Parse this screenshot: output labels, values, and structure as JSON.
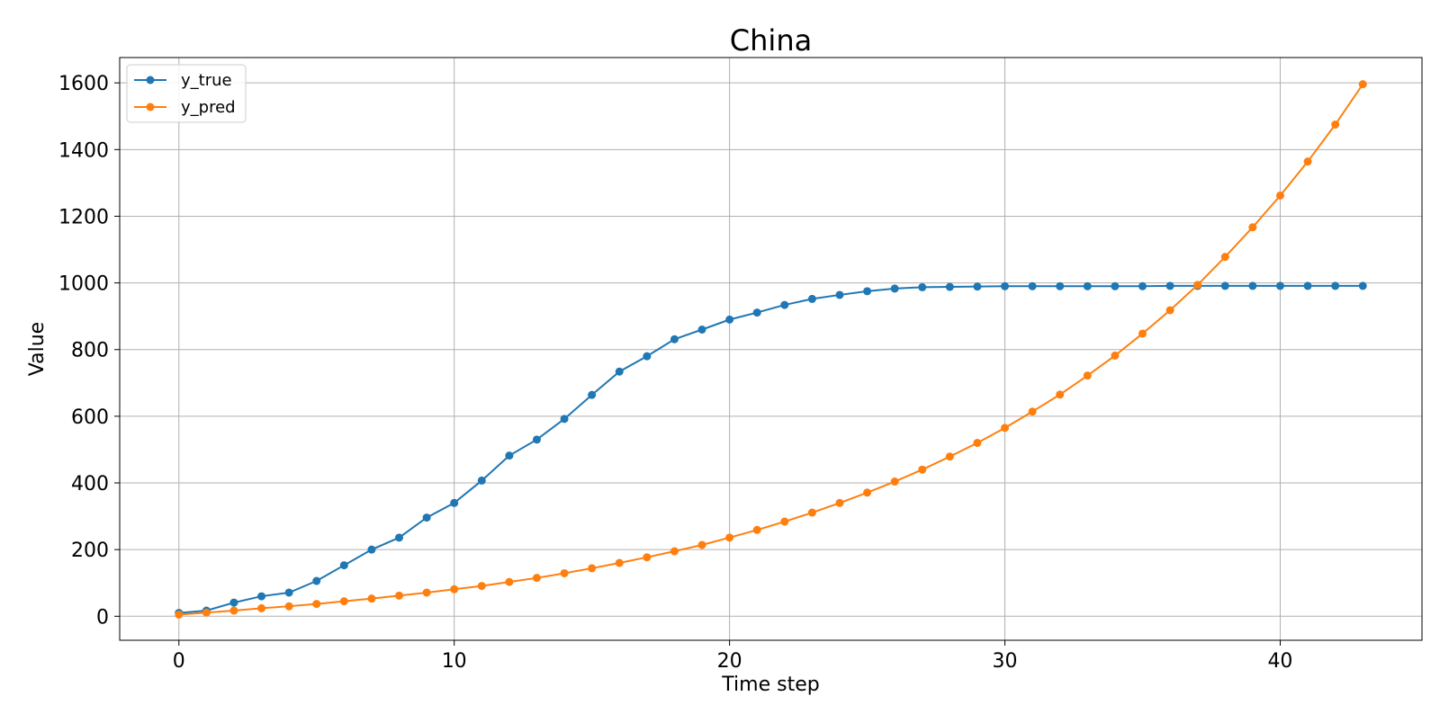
{
  "chart_data": {
    "type": "line",
    "title": "China",
    "xlabel": "Time step",
    "ylabel": "Value",
    "xlim": [
      -2.15,
      45.15
    ],
    "ylim": [
      -72,
      1676
    ],
    "xticks": [
      0,
      10,
      20,
      30,
      40
    ],
    "yticks": [
      0,
      200,
      400,
      600,
      800,
      1000,
      1200,
      1400,
      1600
    ],
    "grid": true,
    "legend_position": "top-left",
    "markers": "circle",
    "x": [
      0,
      1,
      2,
      3,
      4,
      5,
      6,
      7,
      8,
      9,
      10,
      11,
      12,
      13,
      14,
      15,
      16,
      17,
      18,
      19,
      20,
      21,
      22,
      23,
      24,
      25,
      26,
      27,
      28,
      29,
      30,
      31,
      32,
      33,
      34,
      35,
      36,
      37,
      38,
      39,
      40,
      41,
      42,
      43
    ],
    "series": [
      {
        "name": "y_true",
        "color": "#1f77b4",
        "values": [
          10,
          17,
          41,
          60,
          71,
          106,
          153,
          200,
          236,
          296,
          340,
          407,
          482,
          530,
          592,
          664,
          734,
          780,
          831,
          860,
          890,
          911,
          934,
          952,
          964,
          975,
          983,
          987,
          988,
          989,
          990,
          990,
          990,
          990,
          990,
          990,
          991,
          991,
          991,
          991,
          991,
          991,
          991,
          991
        ]
      },
      {
        "name": "y_pred",
        "color": "#ff7f0e",
        "values": [
          5,
          11,
          17,
          24,
          30,
          37,
          45,
          53,
          62,
          71,
          81,
          91,
          103,
          115,
          129,
          144,
          160,
          177,
          195,
          214,
          236,
          259,
          284,
          311,
          340,
          371,
          404,
          440,
          479,
          520,
          565,
          614,
          665,
          722,
          782,
          848,
          918,
          994,
          1078,
          1167,
          1262,
          1364,
          1475,
          1596
        ]
      }
    ]
  }
}
